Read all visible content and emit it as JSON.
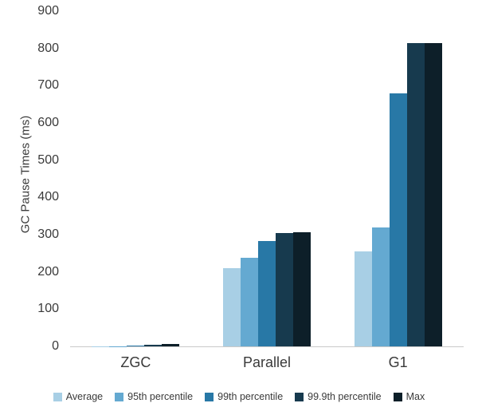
{
  "chart_data": {
    "type": "bar",
    "title": "",
    "xlabel": "",
    "ylabel": "GC Pause Times (ms)",
    "ylim": [
      0,
      900
    ],
    "ytick_step": 100,
    "grid": false,
    "legend_position": "bottom",
    "categories": [
      "ZGC",
      "Parallel",
      "G1"
    ],
    "series": [
      {
        "name": "Average",
        "color": "#a8cfe5",
        "values": [
          1,
          210,
          255
        ]
      },
      {
        "name": "95th percentile",
        "color": "#64a9d1",
        "values": [
          1,
          238,
          320
        ]
      },
      {
        "name": "99th percentile",
        "color": "#2878a6",
        "values": [
          2,
          283,
          680
        ]
      },
      {
        "name": "99.9th percentile",
        "color": "#173a4e",
        "values": [
          4,
          305,
          815
        ]
      },
      {
        "name": "Max",
        "color": "#0d1f29",
        "values": [
          7,
          307,
          815
        ]
      }
    ]
  }
}
